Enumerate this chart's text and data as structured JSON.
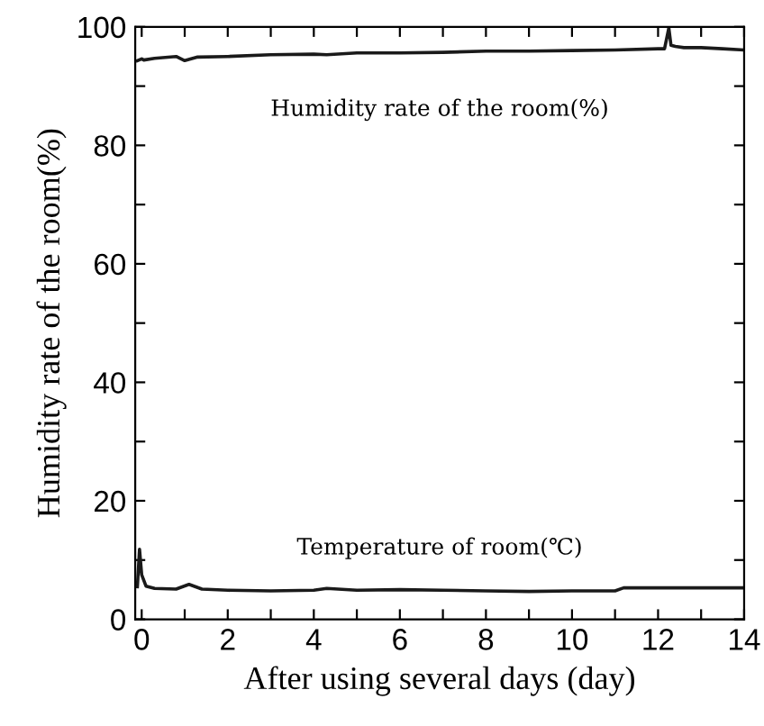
{
  "chart_data": {
    "type": "line",
    "xlabel": "After using several days (day)",
    "ylabel": "Humidity rate of the room(%)",
    "xlim": [
      -0.15,
      14
    ],
    "ylim": [
      0,
      100
    ],
    "xticks": [
      0,
      {
        "value": 1,
        "label": null
      },
      2,
      {
        "value": 3,
        "label": null
      },
      4,
      {
        "value": 5,
        "label": null
      },
      6,
      {
        "value": 7,
        "label": null
      },
      8,
      {
        "value": 9,
        "label": null
      },
      10,
      {
        "value": 11,
        "label": null
      },
      12,
      {
        "value": 13,
        "label": null
      },
      14
    ],
    "yticks": [
      0,
      {
        "value": 10,
        "label": null
      },
      20,
      {
        "value": 30,
        "label": null
      },
      40,
      {
        "value": 50,
        "label": null
      },
      60,
      {
        "value": 70,
        "label": null
      },
      80,
      {
        "value": 90,
        "label": null
      },
      100
    ],
    "grid": false,
    "legend": false,
    "marker": "none",
    "line_style": "solid",
    "series": [
      {
        "name": "Humidity rate of the room(%)",
        "color": "#1a1a1a",
        "x": [
          -0.1,
          0,
          0.05,
          0.3,
          0.8,
          1.0,
          1.3,
          2,
          3,
          4,
          4.3,
          5,
          6,
          7,
          8,
          9,
          10,
          11,
          12,
          12.15,
          12.25,
          12.3,
          12.4,
          12.6,
          13,
          13.5,
          14
        ],
        "values": [
          94.3,
          94.6,
          94.4,
          94.7,
          95.0,
          94.3,
          94.9,
          95.0,
          95.3,
          95.4,
          95.3,
          95.6,
          95.6,
          95.7,
          95.9,
          95.9,
          96.0,
          96.1,
          96.3,
          96.3,
          99.8,
          96.9,
          96.7,
          96.5,
          96.5,
          96.3,
          96.1
        ]
      },
      {
        "name": "Temperature of room(℃)",
        "color": "#1a1a1a",
        "x": [
          -0.1,
          -0.05,
          0,
          0.1,
          0.3,
          0.8,
          1.1,
          1.4,
          2,
          3,
          4,
          4.3,
          5,
          6,
          7,
          8,
          9,
          10,
          11,
          11.2,
          12,
          13,
          14
        ],
        "values": [
          5.5,
          11.8,
          7.5,
          5.6,
          5.2,
          5.1,
          5.9,
          5.1,
          4.9,
          4.8,
          4.9,
          5.2,
          4.9,
          5.0,
          4.9,
          4.8,
          4.7,
          4.8,
          4.8,
          5.3,
          5.3,
          5.3,
          5.3
        ]
      }
    ]
  }
}
